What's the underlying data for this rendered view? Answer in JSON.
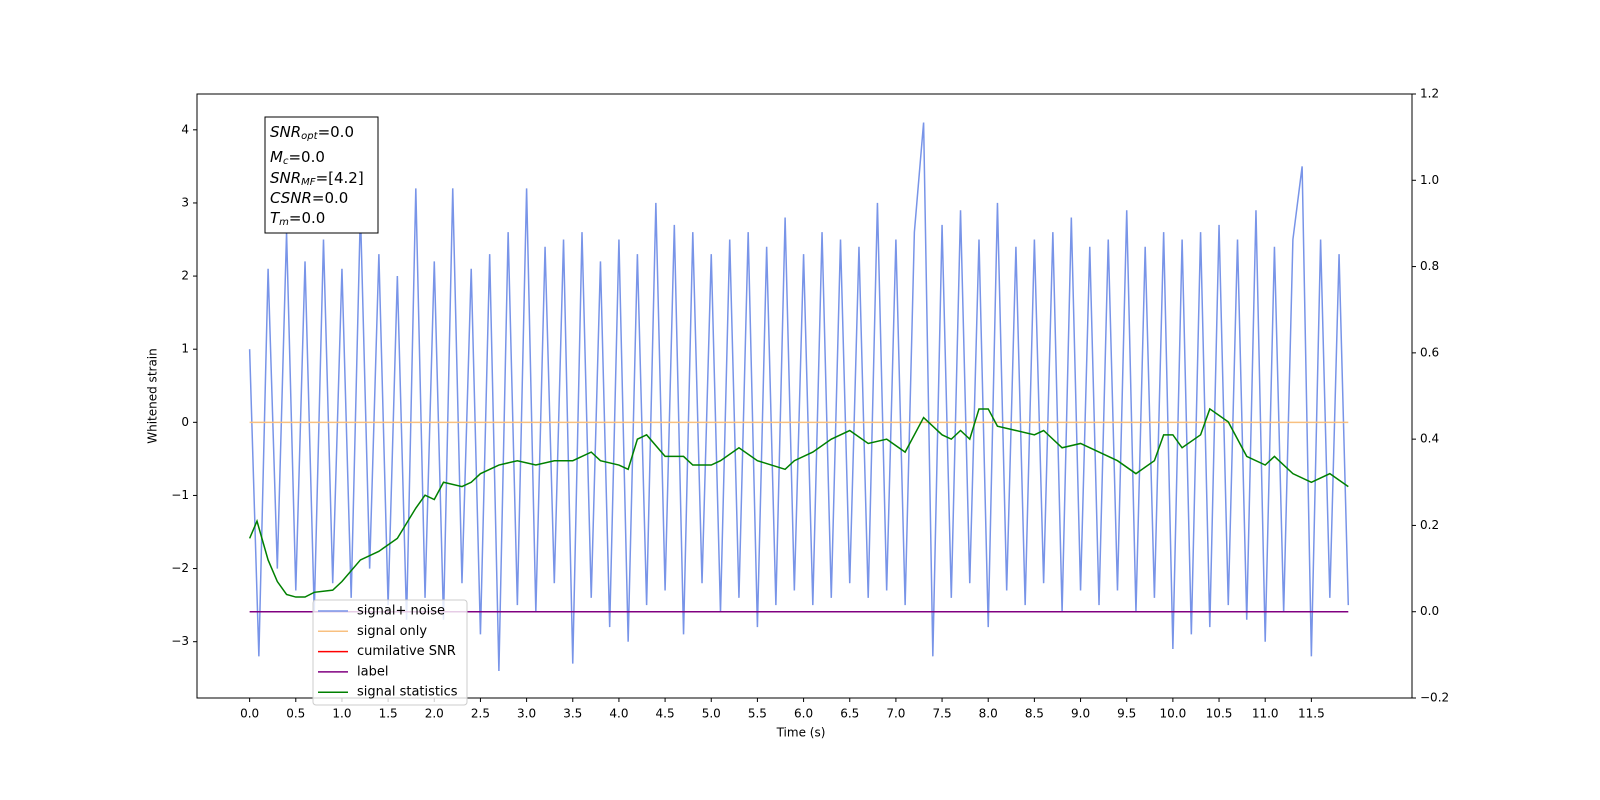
{
  "chart_data": {
    "type": "line",
    "xlabel": "Time (s)",
    "ylabel": "Whitened strain",
    "xlim": [
      -0.57,
      12.59
    ],
    "ylim": [
      -3.77,
      4.49
    ],
    "y2lim": [
      -0.2,
      1.2
    ],
    "xticks": [
      {
        "value": 0,
        "label": "0.0"
      },
      {
        "value": 0.5,
        "label": "0.5"
      },
      {
        "value": 1,
        "label": "1.0"
      },
      {
        "value": 1.5,
        "label": "1.5"
      },
      {
        "value": 2,
        "label": "2.0"
      },
      {
        "value": 2.5,
        "label": "2.5"
      },
      {
        "value": 3,
        "label": "3.0"
      },
      {
        "value": 3.5,
        "label": "3.5"
      },
      {
        "value": 4,
        "label": "4.0"
      },
      {
        "value": 4.5,
        "label": "4.5"
      },
      {
        "value": 5,
        "label": "5.0"
      },
      {
        "value": 5.5,
        "label": "5.5"
      },
      {
        "value": 6,
        "label": "6.0"
      },
      {
        "value": 6.5,
        "label": "6.5"
      },
      {
        "value": 7,
        "label": "7.0"
      },
      {
        "value": 7.5,
        "label": "7.5"
      },
      {
        "value": 8,
        "label": "8.0"
      },
      {
        "value": 8.5,
        "label": "8.5"
      },
      {
        "value": 9,
        "label": "9.0"
      },
      {
        "value": 9.5,
        "label": "9.5"
      },
      {
        "value": 10,
        "label": "10.0"
      },
      {
        "value": 10.5,
        "label": "10.5"
      },
      {
        "value": 11,
        "label": "11.0"
      },
      {
        "value": 11.5,
        "label": "11.5"
      }
    ],
    "yticks": [
      {
        "value": -3,
        "label": "−3"
      },
      {
        "value": -2,
        "label": "−2"
      },
      {
        "value": -1,
        "label": "−1"
      },
      0,
      1,
      2,
      3,
      4
    ],
    "y2ticks": [
      {
        "value": -0.2,
        "label": "−0.2"
      },
      {
        "value": 0,
        "label": "0.0"
      },
      0.2,
      0.4,
      0.6,
      0.8,
      {
        "value": 1,
        "label": "1.0"
      },
      1.2
    ],
    "annotation": [
      {
        "text": "SNR",
        "sub": "opt",
        "value": "=0.0"
      },
      {
        "text": "M",
        "sub": "c",
        "value": "=0.0"
      },
      {
        "text": "SNR",
        "sub": "MF",
        "value": "=[4.2]"
      },
      {
        "text": "CSNR",
        "value": "=0.0"
      },
      {
        "text": "T",
        "sub": "m",
        "value": "=0.0"
      }
    ],
    "legend": "lower left",
    "series": [
      {
        "name": "signal+ noise",
        "color": "#7894e8",
        "x": [
          0.0,
          0.1,
          0.2,
          0.3,
          0.4,
          0.5,
          0.6,
          0.7,
          0.8,
          0.9,
          1.0,
          1.1,
          1.2,
          1.3,
          1.4,
          1.5,
          1.6,
          1.7,
          1.8,
          1.9,
          2.0,
          2.1,
          2.2,
          2.3,
          2.4,
          2.5,
          2.6,
          2.7,
          2.8,
          2.9,
          3.0,
          3.1,
          3.2,
          3.3,
          3.4,
          3.5,
          3.6,
          3.7,
          3.8,
          3.9,
          4.0,
          4.1,
          4.2,
          4.3,
          4.4,
          4.5,
          4.6,
          4.7,
          4.8,
          4.9,
          5.0,
          5.1,
          5.2,
          5.3,
          5.4,
          5.5,
          5.6,
          5.7,
          5.8,
          5.9,
          6.0,
          6.1,
          6.2,
          6.3,
          6.4,
          6.5,
          6.6,
          6.7,
          6.8,
          6.9,
          7.0,
          7.1,
          7.2,
          7.3,
          7.4,
          7.5,
          7.6,
          7.7,
          7.8,
          7.9,
          8.0,
          8.1,
          8.2,
          8.3,
          8.4,
          8.5,
          8.6,
          8.7,
          8.8,
          8.9,
          9.0,
          9.1,
          9.2,
          9.3,
          9.4,
          9.5,
          9.6,
          9.7,
          9.8,
          9.9,
          10.0,
          10.1,
          10.2,
          10.3,
          10.4,
          10.5,
          10.6,
          10.7,
          10.8,
          10.9,
          11.0,
          11.1,
          11.2,
          11.3,
          11.4,
          11.5,
          11.6,
          11.7,
          11.8,
          11.9
        ],
        "values": [
          1.0,
          -3.2,
          2.1,
          -2.0,
          2.6,
          -2.3,
          2.2,
          -2.6,
          2.5,
          -2.2,
          2.1,
          -2.4,
          2.9,
          -2.0,
          2.3,
          -2.5,
          2.0,
          -2.7,
          3.2,
          -2.4,
          2.2,
          -2.7,
          3.2,
          -2.2,
          2.1,
          -2.9,
          2.3,
          -3.4,
          2.6,
          -2.5,
          3.2,
          -2.6,
          2.4,
          -2.2,
          2.5,
          -3.3,
          2.6,
          -2.4,
          2.2,
          -2.8,
          2.5,
          -3.0,
          2.3,
          -2.5,
          3.0,
          -2.3,
          2.7,
          -2.9,
          2.6,
          -2.2,
          2.3,
          -2.6,
          2.5,
          -2.4,
          2.6,
          -2.8,
          2.4,
          -2.5,
          2.8,
          -2.3,
          2.3,
          -2.5,
          2.6,
          -2.4,
          2.5,
          -2.2,
          2.4,
          -2.4,
          3.0,
          -2.3,
          2.5,
          -2.5,
          2.6,
          4.1,
          -3.2,
          2.7,
          -2.4,
          2.9,
          -2.2,
          2.5,
          -2.8,
          3.0,
          -2.3,
          2.4,
          -2.5,
          2.5,
          -2.2,
          2.6,
          -2.6,
          2.8,
          -2.3,
          2.4,
          -2.5,
          2.5,
          -2.3,
          2.9,
          -2.6,
          2.4,
          -2.4,
          2.6,
          -3.1,
          2.5,
          -2.9,
          2.6,
          -2.8,
          2.7,
          -2.5,
          2.5,
          -2.7,
          2.9,
          -3.0,
          2.4,
          -2.6,
          2.5,
          3.5,
          -3.2,
          2.5,
          -2.4,
          2.3,
          -2.5
        ]
      },
      {
        "name": "signal only",
        "color": "#f8c080",
        "x": [
          0.0,
          11.9
        ],
        "values": [
          0,
          0
        ]
      },
      {
        "name": "cumilative SNR",
        "color": "#ff0000"
      },
      {
        "name": "label",
        "color": "#800080",
        "axis": "y2",
        "x": [
          0.0,
          11.9
        ],
        "values": [
          0,
          0
        ]
      },
      {
        "name": "signal statistics",
        "color": "#008000",
        "axis": "y2",
        "x": [
          0.0,
          0.08,
          0.2,
          0.3,
          0.4,
          0.5,
          0.6,
          0.7,
          0.9,
          1.0,
          1.2,
          1.4,
          1.6,
          1.8,
          1.9,
          2.0,
          2.1,
          2.3,
          2.4,
          2.5,
          2.7,
          2.9,
          3.1,
          3.3,
          3.5,
          3.7,
          3.8,
          4.0,
          4.1,
          4.2,
          4.3,
          4.5,
          4.7,
          4.8,
          5.0,
          5.1,
          5.3,
          5.5,
          5.8,
          5.9,
          6.1,
          6.3,
          6.5,
          6.7,
          6.9,
          7.1,
          7.3,
          7.5,
          7.6,
          7.7,
          7.8,
          7.9,
          8.0,
          8.1,
          8.3,
          8.5,
          8.6,
          8.8,
          9.0,
          9.2,
          9.4,
          9.6,
          9.8,
          9.9,
          10.0,
          10.1,
          10.3,
          10.4,
          10.6,
          10.8,
          11.0,
          11.1,
          11.3,
          11.5,
          11.7,
          11.9
        ],
        "values": [
          0.17,
          0.21,
          0.12,
          0.07,
          0.04,
          0.034,
          0.034,
          0.045,
          0.05,
          0.07,
          0.12,
          0.14,
          0.17,
          0.24,
          0.27,
          0.26,
          0.3,
          0.29,
          0.3,
          0.32,
          0.34,
          0.35,
          0.34,
          0.35,
          0.35,
          0.37,
          0.35,
          0.34,
          0.33,
          0.4,
          0.41,
          0.36,
          0.36,
          0.34,
          0.34,
          0.35,
          0.38,
          0.35,
          0.33,
          0.35,
          0.37,
          0.4,
          0.42,
          0.39,
          0.4,
          0.37,
          0.45,
          0.41,
          0.4,
          0.42,
          0.4,
          0.47,
          0.47,
          0.43,
          0.42,
          0.41,
          0.42,
          0.38,
          0.39,
          0.37,
          0.35,
          0.32,
          0.35,
          0.41,
          0.41,
          0.38,
          0.41,
          0.47,
          0.44,
          0.36,
          0.34,
          0.36,
          0.32,
          0.3,
          0.32,
          0.29
        ]
      }
    ]
  }
}
